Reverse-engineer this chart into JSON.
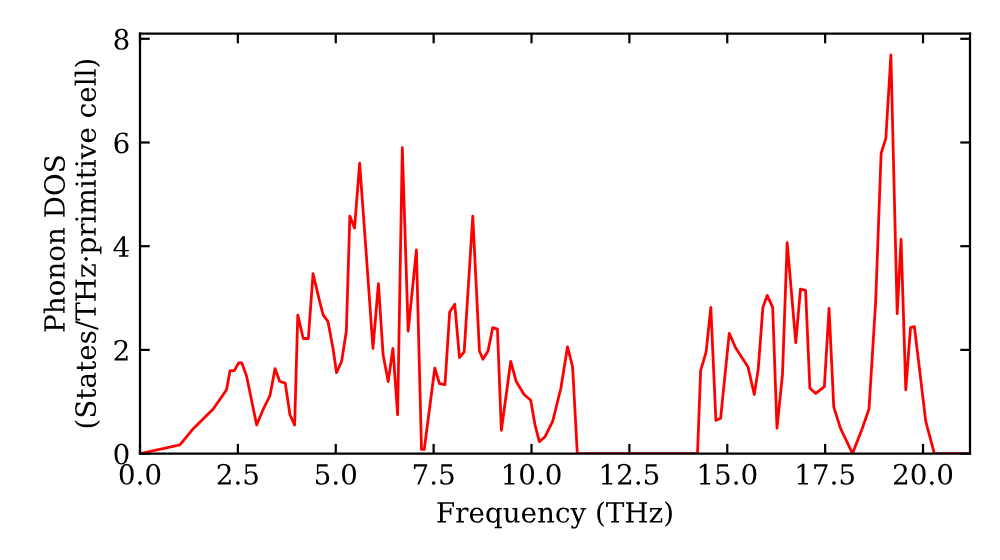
{
  "chart_data": {
    "type": "line",
    "xlabel": "Frequency (THz)",
    "ylabel": "Phonon DOS\n(States/THz·primitive cell)",
    "xlim": [
      0,
      21.2
    ],
    "ylim": [
      0,
      8.1
    ],
    "xticks": [
      {
        "value": 0,
        "label": "0.0"
      },
      {
        "value": 2.5,
        "label": "2.5"
      },
      {
        "value": 5,
        "label": "5.0"
      },
      {
        "value": 7.5,
        "label": "7.5"
      },
      {
        "value": 10,
        "label": "10.0"
      },
      {
        "value": 12.5,
        "label": "12.5"
      },
      {
        "value": 15,
        "label": "15.0"
      },
      {
        "value": 17.5,
        "label": "17.5"
      },
      {
        "value": 20,
        "label": "20.0"
      }
    ],
    "yticks": [
      0,
      2,
      4,
      6,
      8
    ],
    "grid": false,
    "marker": "none",
    "line_style": "solid",
    "series": [
      {
        "color": "#ff0000",
        "x": [
          0,
          1.02,
          1.36,
          1.87,
          2.21,
          2.3,
          2.41,
          2.52,
          2.6,
          2.72,
          2.98,
          3.15,
          3.32,
          3.45,
          3.57,
          3.71,
          3.83,
          3.95,
          4.03,
          4.17,
          4.3,
          4.42,
          4.59,
          4.68,
          4.8,
          4.93,
          5.02,
          5.15,
          5.27,
          5.36,
          5.48,
          5.61,
          5.78,
          5.95,
          6.09,
          6.21,
          6.34,
          6.46,
          6.58,
          6.7,
          6.85,
          7.06,
          7.19,
          7.26,
          7.53,
          7.65,
          7.79,
          7.91,
          8.04,
          8.16,
          8.28,
          8.5,
          8.67,
          8.76,
          8.89,
          9.01,
          9.13,
          9.23,
          9.47,
          9.61,
          9.81,
          9.98,
          10.09,
          10.2,
          10.34,
          10.54,
          10.75,
          10.92,
          11.05,
          11.17,
          14.24,
          14.32,
          14.46,
          14.58,
          14.71,
          14.83,
          15.05,
          15.22,
          15.53,
          15.69,
          15.79,
          15.91,
          16.02,
          16.16,
          16.27,
          16.41,
          16.53,
          16.75,
          16.87,
          17.0,
          17.11,
          17.26,
          17.48,
          17.6,
          17.72,
          17.89,
          18.2,
          18.45,
          18.62,
          18.79,
          18.93,
          19.05,
          19.18,
          19.34,
          19.44,
          19.56,
          19.68,
          19.78,
          20.07,
          20.29,
          21.2
        ],
        "values": [
          0,
          0.17,
          0.48,
          0.86,
          1.23,
          1.6,
          1.6,
          1.75,
          1.75,
          1.5,
          0.55,
          0.86,
          1.12,
          1.64,
          1.39,
          1.36,
          0.75,
          0.55,
          2.67,
          2.22,
          2.22,
          3.47,
          2.93,
          2.67,
          2.55,
          2.03,
          1.56,
          1.78,
          2.36,
          4.58,
          4.35,
          5.6,
          3.84,
          2.03,
          3.28,
          1.9,
          1.39,
          2.03,
          0.75,
          5.9,
          2.36,
          3.93,
          0.08,
          0.08,
          1.65,
          1.35,
          1.33,
          2.73,
          2.88,
          1.85,
          1.96,
          4.58,
          1.98,
          1.82,
          1.98,
          2.43,
          2.4,
          0.45,
          1.78,
          1.39,
          1.14,
          1.03,
          0.55,
          0.23,
          0.32,
          0.62,
          1.26,
          2.06,
          1.67,
          0,
          0,
          1.6,
          1.96,
          2.82,
          0.64,
          0.68,
          2.32,
          2.03,
          1.67,
          1.14,
          1.62,
          2.82,
          3.05,
          2.82,
          0.49,
          1.52,
          4.07,
          2.14,
          3.17,
          3.15,
          1.26,
          1.16,
          1.29,
          2.8,
          0.9,
          0.49,
          0,
          0.49,
          0.86,
          2.92,
          5.79,
          6.08,
          7.69,
          2.7,
          4.13,
          1.23,
          2.43,
          2.45,
          0.62,
          0,
          0
        ]
      }
    ]
  }
}
